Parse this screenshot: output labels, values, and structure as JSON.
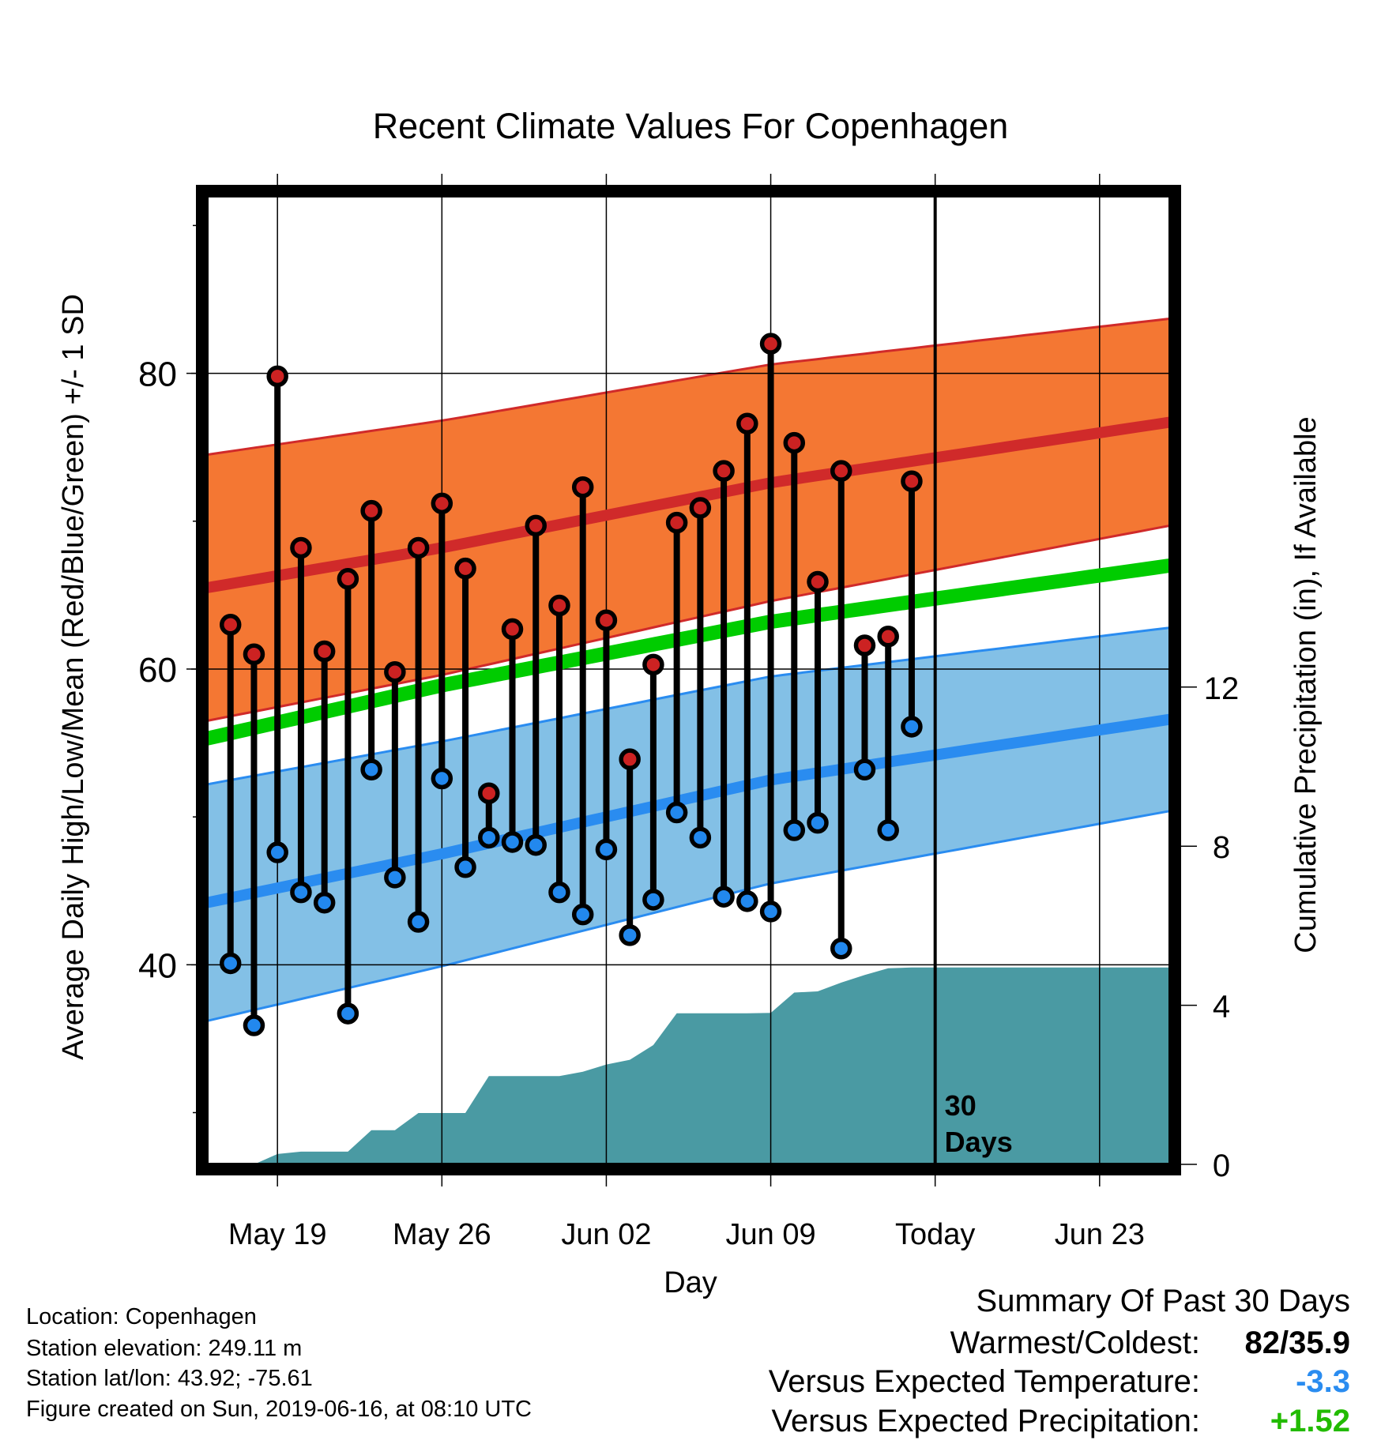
{
  "chart_data": {
    "type": "line",
    "title": "Recent Climate Values For Copenhagen",
    "xlabel": "Day",
    "ylabel": "Average Daily High/Low/Mean (Red/Blue/Green) +/- 1 SD",
    "y2label": "Cumulative Precipitation (in), If Available",
    "x_range": [
      "2019-05-16",
      "2019-06-26"
    ],
    "ylim": [
      26.5,
      92
    ],
    "y2lim": [
      0,
      24.35
    ],
    "yticks": [
      80,
      60,
      40
    ],
    "ytick_labels": [
      "80",
      "60",
      "40"
    ],
    "y2ticks": [
      12,
      8,
      4,
      0
    ],
    "y2tick_labels": [
      "12",
      "8",
      "4",
      "0"
    ],
    "xticks": [
      "2019-05-19",
      "2019-05-26",
      "2019-06-02",
      "2019-06-09",
      "2019-06-16",
      "2019-06-23"
    ],
    "xtick_labels": [
      "May 19",
      "May 26",
      "Jun 02",
      "Jun 09",
      "Today",
      "Jun 23"
    ],
    "today": "2019-06-16",
    "today_label": [
      "30",
      "Days"
    ],
    "grid": true,
    "normals": {
      "dates": [
        "2019-05-16",
        "2019-05-26",
        "2019-06-09",
        "2019-06-26"
      ],
      "high_mean": [
        65.5,
        68.2,
        72.6,
        76.7
      ],
      "high_sd": [
        9.0,
        8.6,
        8.0,
        7.0
      ],
      "low_mean": [
        44.2,
        47.5,
        52.5,
        56.6
      ],
      "low_sd": [
        8.0,
        7.6,
        7.0,
        6.2
      ],
      "mean": [
        55.3,
        58.9,
        63.2,
        67.0
      ]
    },
    "daily": {
      "dates": [
        "2019-05-17",
        "2019-05-18",
        "2019-05-19",
        "2019-05-20",
        "2019-05-21",
        "2019-05-22",
        "2019-05-23",
        "2019-05-24",
        "2019-05-25",
        "2019-05-26",
        "2019-05-27",
        "2019-05-28",
        "2019-05-29",
        "2019-05-30",
        "2019-05-31",
        "2019-06-01",
        "2019-06-02",
        "2019-06-03",
        "2019-06-04",
        "2019-06-05",
        "2019-06-06",
        "2019-06-07",
        "2019-06-08",
        "2019-06-09",
        "2019-06-10",
        "2019-06-11",
        "2019-06-12",
        "2019-06-13",
        "2019-06-14",
        "2019-06-15"
      ],
      "high": [
        63.0,
        61.0,
        79.8,
        68.2,
        61.2,
        66.1,
        70.7,
        59.8,
        68.2,
        71.2,
        66.8,
        51.6,
        62.7,
        69.7,
        64.3,
        72.3,
        63.3,
        53.9,
        60.3,
        69.9,
        70.9,
        73.4,
        76.6,
        82.0,
        75.3,
        65.9,
        73.4,
        61.6,
        62.2,
        72.7
      ],
      "low": [
        40.1,
        35.9,
        47.6,
        44.9,
        44.2,
        36.7,
        53.2,
        45.9,
        42.9,
        52.6,
        46.6,
        48.6,
        48.3,
        48.1,
        44.9,
        43.4,
        47.8,
        42.0,
        44.4,
        50.3,
        48.6,
        44.6,
        44.3,
        43.6,
        49.1,
        49.6,
        41.1,
        53.2,
        49.1,
        56.1
      ]
    },
    "precip": {
      "dates": [
        "2019-05-16",
        "2019-05-18",
        "2019-05-19",
        "2019-05-20",
        "2019-05-22",
        "2019-05-23",
        "2019-05-24",
        "2019-05-25",
        "2019-05-26",
        "2019-05-27",
        "2019-05-28",
        "2019-05-29",
        "2019-05-31",
        "2019-06-01",
        "2019-06-02",
        "2019-06-03",
        "2019-06-04",
        "2019-06-05",
        "2019-06-06",
        "2019-06-07",
        "2019-06-08",
        "2019-06-09",
        "2019-06-10",
        "2019-06-11",
        "2019-06-12",
        "2019-06-13",
        "2019-06-14",
        "2019-06-15",
        "2019-06-16",
        "2019-06-26"
      ],
      "cumulative": [
        0,
        0,
        0.26,
        0.32,
        0.32,
        0.86,
        0.86,
        1.29,
        1.29,
        1.29,
        2.22,
        2.22,
        2.22,
        2.33,
        2.51,
        2.63,
        3.0,
        3.8,
        3.8,
        3.8,
        3.8,
        3.81,
        4.32,
        4.35,
        4.57,
        4.76,
        4.93,
        4.95,
        4.95,
        4.95
      ]
    },
    "colors": {
      "high_band": "#f47733",
      "high_line": "#d02a2a",
      "low_band": "#83c0e6",
      "low_line": "#2a8cf0",
      "mean_line": "#00cc00",
      "precip": "#4a9aa3",
      "high_dot": "#cc2222",
      "low_dot": "#2288ee"
    }
  },
  "info": {
    "location": "Location: Copenhagen",
    "elevation": "Station elevation: 249.11 m",
    "latlon": "Station lat/lon: 43.92; -75.61",
    "created": "Figure created on Sun, 2019-06-16, at 08:10 UTC"
  },
  "summary": {
    "title": "Summary Of Past 30 Days",
    "warmest_label": "Warmest/Coldest:",
    "warmest_value": "82/35.9",
    "temp_label": "Versus Expected Temperature:",
    "temp_value": "-3.3",
    "temp_color": "#2a8cf0",
    "precip_label": "Versus Expected Precipitation:",
    "precip_value": "+1.52",
    "precip_color": "#22bb00"
  }
}
